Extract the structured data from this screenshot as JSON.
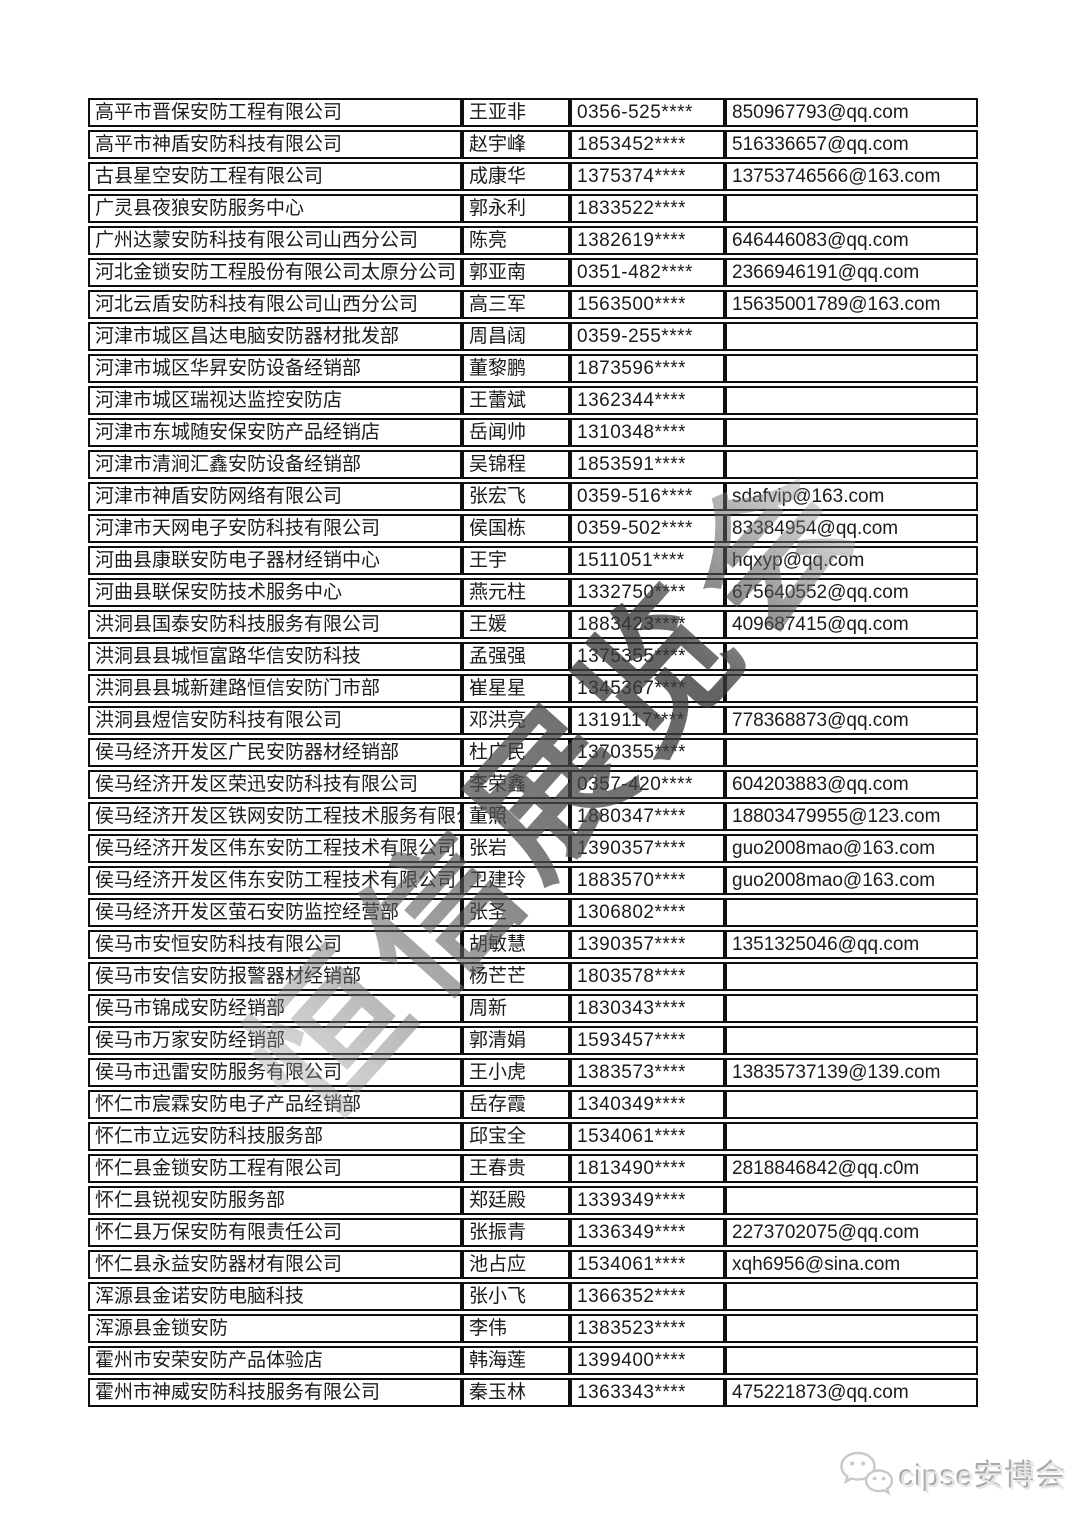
{
  "page": {
    "background": "#ffffff",
    "border_color": "#0f0f0f"
  },
  "table": {
    "rows": [
      {
        "company": "高平市晋保安防工程有限公司",
        "contact": "王亚非",
        "phone": "0356-525****",
        "email": "850967793@qq.com"
      },
      {
        "company": "高平市神盾安防科技有限公司",
        "contact": "赵宇峰",
        "phone": "1853452****",
        "email": "516336657@qq.com"
      },
      {
        "company": "古县星空安防工程有限公司",
        "contact": "成康华",
        "phone": "1375374****",
        "email": "13753746566@163.com"
      },
      {
        "company": "广灵县夜狼安防服务中心",
        "contact": "郭永利",
        "phone": "1833522****",
        "email": ""
      },
      {
        "company": "广州达蒙安防科技有限公司山西分公司",
        "contact": "陈亮",
        "phone": "1382619****",
        "email": "646446083@qq.com"
      },
      {
        "company": "河北金锁安防工程股份有限公司太原分公司",
        "contact": "郭亚南",
        "phone": "0351-482****",
        "email": "2366946191@qq.com"
      },
      {
        "company": "河北云盾安防科技有限公司山西分公司",
        "contact": "高三军",
        "phone": "1563500****",
        "email": "15635001789@163.com"
      },
      {
        "company": "河津市城区昌达电脑安防器材批发部",
        "contact": "周昌阔",
        "phone": "0359-255****",
        "email": ""
      },
      {
        "company": "河津市城区华昇安防设备经销部",
        "contact": "董黎鹏",
        "phone": "1873596****",
        "email": ""
      },
      {
        "company": "河津市城区瑞视达监控安防店",
        "contact": "王蕾斌",
        "phone": "1362344****",
        "email": ""
      },
      {
        "company": "河津市东城随安保安防产品经销店",
        "contact": "岳闻帅",
        "phone": "1310348****",
        "email": ""
      },
      {
        "company": "河津市清涧汇鑫安防设备经销部",
        "contact": "吴锦程",
        "phone": "1853591****",
        "email": ""
      },
      {
        "company": "河津市神盾安防网络有限公司",
        "contact": "张宏飞",
        "phone": "0359-516****",
        "email": "sdafvip@163.com"
      },
      {
        "company": "河津市天网电子安防科技有限公司",
        "contact": "侯国栋",
        "phone": "0359-502****",
        "email": "83384954@qq.com"
      },
      {
        "company": "河曲县康联安防电子器材经销中心",
        "contact": "王宇",
        "phone": "1511051****",
        "email": "hqxyp@qq.com"
      },
      {
        "company": "河曲县联保安防技术服务中心",
        "contact": "燕元柱",
        "phone": "1332750****",
        "email": "675640552@qq.com"
      },
      {
        "company": "洪洞县国泰安防科技服务有限公司",
        "contact": "王媛",
        "phone": "1883423****",
        "email": "409687415@qq.com"
      },
      {
        "company": "洪洞县县城恒富路华信安防科技",
        "contact": "孟强强",
        "phone": "1375355****",
        "email": ""
      },
      {
        "company": "洪洞县县城新建路恒信安防门市部",
        "contact": "崔星星",
        "phone": "1345367****",
        "email": ""
      },
      {
        "company": "洪洞县煜信安防科技有限公司",
        "contact": "邓洪亮",
        "phone": "1319117****",
        "email": "778368873@qq.com"
      },
      {
        "company": "侯马经济开发区广民安防器材经销部",
        "contact": "杜广民",
        "phone": "1370355****",
        "email": ""
      },
      {
        "company": "侯马经济开发区荣迅安防科技有限公司",
        "contact": "李荣鑫",
        "phone": "0357-420****",
        "email": "604203883@qq.com"
      },
      {
        "company": "侯马经济开发区铁网安防工程技术服务有限公司",
        "contact": "董照",
        "phone": "1880347****",
        "email": "18803479955@123.com"
      },
      {
        "company": "侯马经济开发区伟东安防工程技术有限公司",
        "contact": "张岩",
        "phone": "1390357****",
        "email": "guo2008mao@163.com"
      },
      {
        "company": "侯马经济开发区伟东安防工程技术有限公司",
        "contact": "卫建玲",
        "phone": "1883570****",
        "email": "guo2008mao@163.com"
      },
      {
        "company": "侯马经济开发区萤石安防监控经营部",
        "contact": "张圣",
        "phone": "1306802****",
        "email": ""
      },
      {
        "company": "侯马市安恒安防科技有限公司",
        "contact": "胡敏慧",
        "phone": "1390357****",
        "email": "1351325046@qq.com"
      },
      {
        "company": "侯马市安信安防报警器材经销部",
        "contact": "杨芒芒",
        "phone": "1803578****",
        "email": ""
      },
      {
        "company": "侯马市锦成安防经销部",
        "contact": "周新",
        "phone": "1830343****",
        "email": ""
      },
      {
        "company": "侯马市万家安防经销部",
        "contact": "郭清娟",
        "phone": "1593457****",
        "email": ""
      },
      {
        "company": "侯马市迅雷安防服务有限公司",
        "contact": "王小虎",
        "phone": "1383573****",
        "email": "13835737139@139.com"
      },
      {
        "company": "怀仁市宸霖安防电子产品经销部",
        "contact": "岳存霞",
        "phone": "1340349****",
        "email": ""
      },
      {
        "company": "怀仁市立远安防科技服务部",
        "contact": "邱宝全",
        "phone": "1534061****",
        "email": ""
      },
      {
        "company": "怀仁县金锁安防工程有限公司",
        "contact": "王春贵",
        "phone": "1813490****",
        "email": "2818846842@qq.c0m"
      },
      {
        "company": "怀仁县锐视安防服务部",
        "contact": "郑廷殿",
        "phone": "1339349****",
        "email": ""
      },
      {
        "company": "怀仁县万保安防有限责任公司",
        "contact": "张振青",
        "phone": "1336349****",
        "email": "2273702075@qq.com"
      },
      {
        "company": "怀仁县永益安防器材有限公司",
        "contact": "池占应",
        "phone": "1534061****",
        "email": "xqh6956@sina.com"
      },
      {
        "company": "浑源县金诺安防电脑科技",
        "contact": "张小飞",
        "phone": "1366352****",
        "email": ""
      },
      {
        "company": "浑源县金锁安防",
        "contact": "李伟",
        "phone": "1383523****",
        "email": ""
      },
      {
        "company": "霍州市安荣安防产品体验店",
        "contact": "韩海莲",
        "phone": "1399400****",
        "email": ""
      },
      {
        "company": "霍州市神威安防科技服务有限公司",
        "contact": "秦玉林",
        "phone": "1363343****",
        "email": "475221873@qq.com"
      }
    ]
  },
  "watermark": {
    "text": "恒信展览会",
    "color": "#4a4a4a"
  },
  "footer": {
    "logo_text": "cipse安博会",
    "icon": "wechat-icon",
    "color": "#d6d6d6"
  }
}
